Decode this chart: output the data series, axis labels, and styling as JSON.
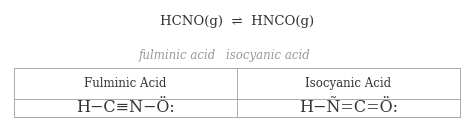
{
  "title_line": "HCNO(g)  ⇌  HNCO(g)",
  "subtitle_left": "fulminic acid",
  "subtitle_right": "isocyanic acid",
  "col1_header": "Fulminic Acid",
  "col2_header": "Isocyanic Acid",
  "lewis1": "H−C≡N−Ö:",
  "lewis2": "H−Ñ=C=Ö:",
  "text_color": "#333333",
  "gray_color": "#999999",
  "border_color": "#aaaaaa",
  "bg_color": "#ffffff",
  "title_fontsize": 9.5,
  "subtitle_fontsize": 8.5,
  "header_fontsize": 8.5,
  "lewis_fontsize": 11.5,
  "fig_width": 4.74,
  "fig_height": 1.22,
  "dpi": 100
}
